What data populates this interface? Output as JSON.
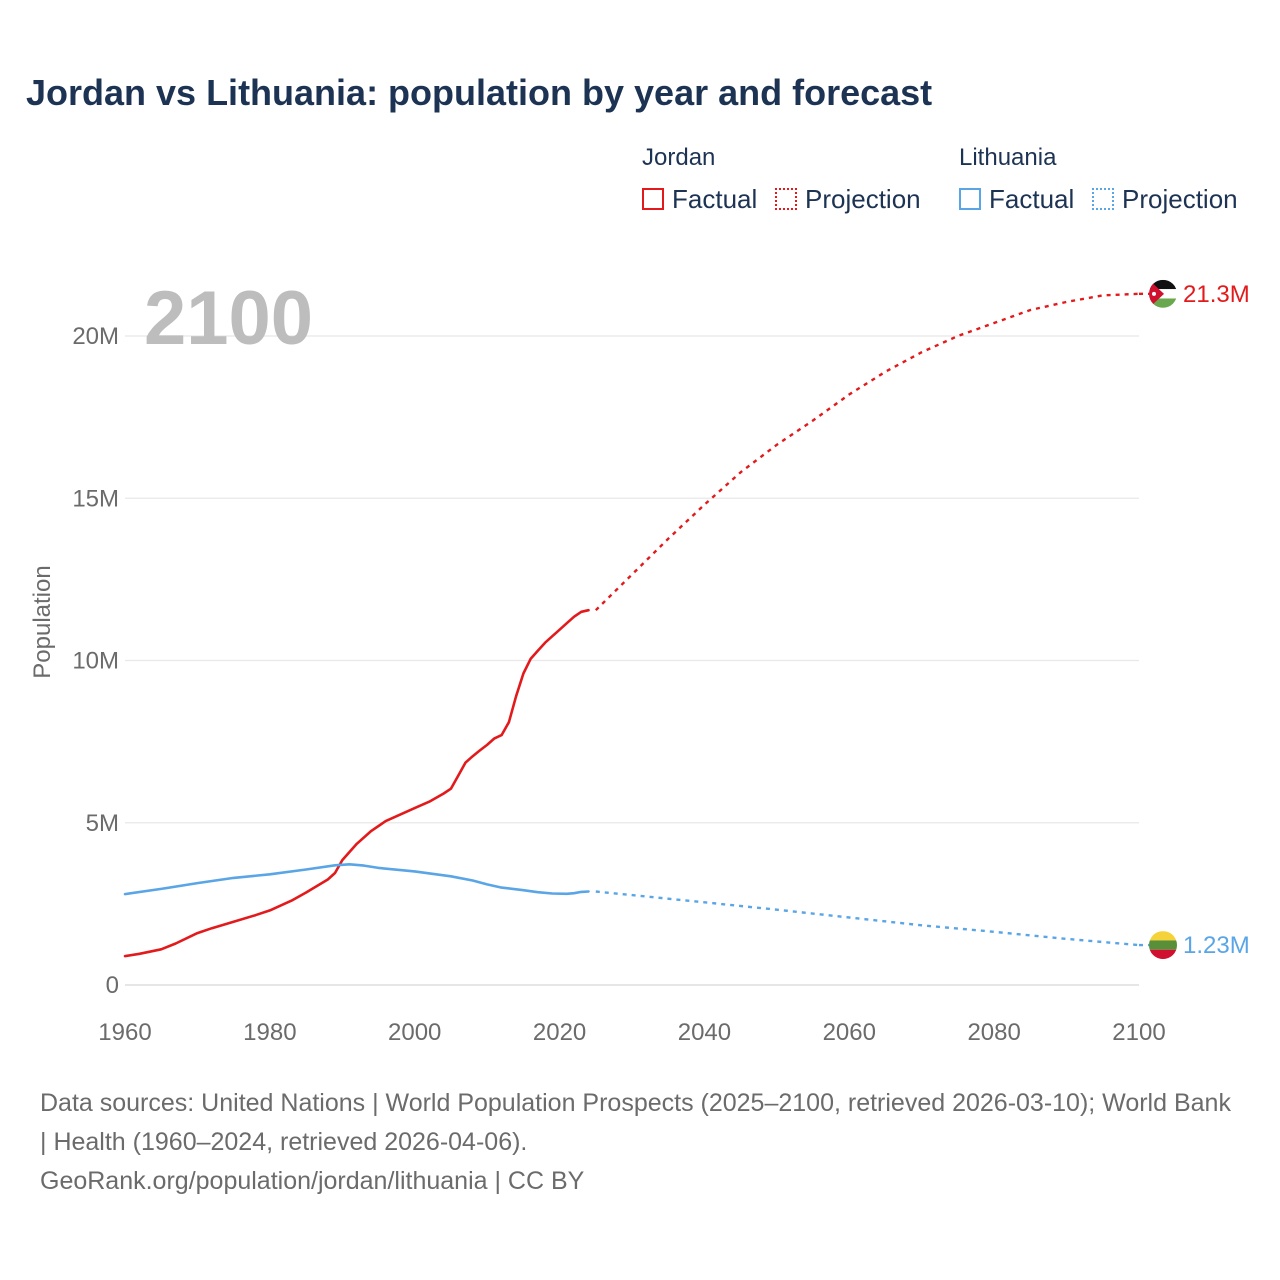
{
  "title": "Jordan vs Lithuania: population by year and forecast",
  "legend": {
    "groups": [
      {
        "name": "Jordan",
        "color": "#e31a1c",
        "factual_label": "Factual",
        "projection_label": "Projection"
      },
      {
        "name": "Lithuania",
        "color": "#5aa5e6",
        "factual_label": "Factual",
        "projection_label": "Projection"
      }
    ]
  },
  "source": {
    "line1": "Data sources: United Nations | World Population Prospects (2025–2100, retrieved 2026-03-10); World Bank | Health (1960–2024, retrieved 2026-04-06).",
    "line2": "GeoRank.org/population/jordan/lithuania | CC BY"
  },
  "chart_data": {
    "type": "line",
    "title": "Jordan vs Lithuania: population by year and forecast",
    "year_label": "2100",
    "xlabel": "",
    "ylabel": "Population",
    "xlim": [
      1960,
      2100
    ],
    "ylim": [
      0,
      20000000
    ],
    "x_ticks": [
      1960,
      1980,
      2000,
      2020,
      2040,
      2060,
      2080,
      2100
    ],
    "x_tick_labels": [
      "1960",
      "1980",
      "2000",
      "2020",
      "2040",
      "2060",
      "2080",
      "2100"
    ],
    "y_ticks": [
      0,
      5000000,
      10000000,
      15000000,
      20000000
    ],
    "y_tick_labels": [
      "0",
      "5M",
      "10M",
      "15M",
      "20M"
    ],
    "grid": true,
    "series": [
      {
        "name": "Jordan",
        "color": "#e31a1c",
        "end_label": "21.3M",
        "flag": "jordan-flag",
        "factual": {
          "x": [
            1960,
            1962,
            1965,
            1967,
            1970,
            1972,
            1975,
            1978,
            1980,
            1983,
            1985,
            1988,
            1989,
            1990,
            1992,
            1994,
            1996,
            1998,
            2000,
            2002,
            2004,
            2005,
            2006,
            2007,
            2008,
            2009,
            2010,
            2011,
            2012,
            2013,
            2014,
            2015,
            2016,
            2017,
            2018,
            2019,
            2020,
            2021,
            2022,
            2023,
            2024
          ],
          "y": [
            890000,
            960000,
            1100000,
            1280000,
            1600000,
            1750000,
            1950000,
            2150000,
            2300000,
            2600000,
            2850000,
            3250000,
            3450000,
            3850000,
            4350000,
            4750000,
            5050000,
            5250000,
            5450000,
            5650000,
            5900000,
            6050000,
            6450000,
            6850000,
            7050000,
            7230000,
            7400000,
            7600000,
            7700000,
            8100000,
            8900000,
            9600000,
            10050000,
            10300000,
            10550000,
            10750000,
            10950000,
            11150000,
            11350000,
            11500000,
            11550000
          ]
        },
        "projection": {
          "x": [
            2025,
            2030,
            2035,
            2040,
            2045,
            2050,
            2055,
            2060,
            2065,
            2070,
            2075,
            2080,
            2085,
            2090,
            2095,
            2100
          ],
          "y": [
            11550000,
            12650000,
            13750000,
            14800000,
            15800000,
            16650000,
            17400000,
            18200000,
            18900000,
            19500000,
            20000000,
            20400000,
            20800000,
            21050000,
            21250000,
            21300000
          ]
        }
      },
      {
        "name": "Lithuania",
        "color": "#5aa5e6",
        "end_label": "1.23M",
        "flag": "lithuania-flag",
        "factual": {
          "x": [
            1960,
            1965,
            1970,
            1975,
            1980,
            1985,
            1989,
            1991,
            1993,
            1995,
            2000,
            2005,
            2008,
            2010,
            2012,
            2015,
            2017,
            2019,
            2021,
            2022,
            2023,
            2024
          ],
          "y": [
            2800000,
            2960000,
            3140000,
            3300000,
            3410000,
            3560000,
            3690000,
            3720000,
            3680000,
            3610000,
            3500000,
            3350000,
            3220000,
            3100000,
            3000000,
            2920000,
            2860000,
            2820000,
            2810000,
            2830000,
            2870000,
            2880000
          ]
        },
        "projection": {
          "x": [
            2025,
            2030,
            2040,
            2050,
            2060,
            2070,
            2080,
            2090,
            2100
          ],
          "y": [
            2880000,
            2770000,
            2550000,
            2320000,
            2080000,
            1840000,
            1640000,
            1420000,
            1230000
          ]
        }
      }
    ]
  }
}
